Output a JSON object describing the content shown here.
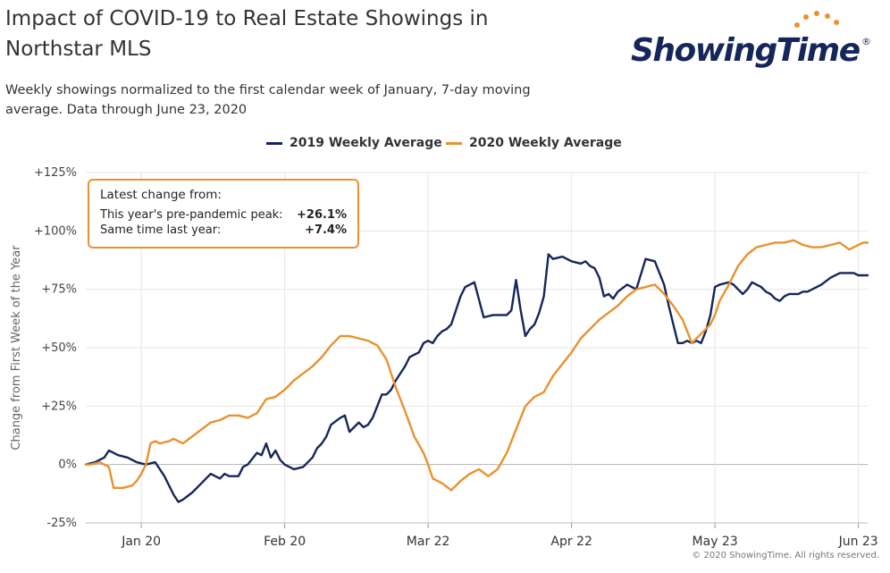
{
  "header": {
    "title": "Impact of COVID-19 to Real Estate Showings in Northstar MLS",
    "subtitle": "Weekly showings normalized to the first calendar week of January, 7-day moving average. Data through June 23, 2020"
  },
  "logo": {
    "text": "ShowingTime",
    "registered": "®"
  },
  "legend": [
    {
      "label": "2019 Weekly Average",
      "color": "#15265a"
    },
    {
      "label": "2020 Weekly Average",
      "color": "#e8922f"
    }
  ],
  "callout": {
    "heading": "Latest change from:",
    "rows": [
      {
        "label": "This year's pre-pandemic peak:",
        "value": "+26.1%"
      },
      {
        "label": "Same time last year:",
        "value": "+7.4%"
      }
    ]
  },
  "credit": "© 2020 ShowingTime. All rights reserved.",
  "chart_data": {
    "type": "line",
    "title": "Impact of COVID-19 to Real Estate Showings in Northstar MLS",
    "xlabel": "",
    "ylabel": "Change from First Week of the Year",
    "x_unit": "day of year (Jan 1 = day 0)",
    "ylim": [
      -25,
      125
    ],
    "xlim": [
      7,
      176
    ],
    "grid": true,
    "legend_position": "top-center",
    "y_ticks": [
      -25,
      0,
      25,
      50,
      75,
      100,
      125
    ],
    "y_tick_labels": [
      "-25%",
      "0%",
      "+25%",
      "+50%",
      "+75%",
      "+100%",
      "+125%"
    ],
    "x_ticks": [
      {
        "value": 19,
        "label": "Jan 20"
      },
      {
        "value": 50,
        "label": "Feb 20"
      },
      {
        "value": 81,
        "label": "Mar 22"
      },
      {
        "value": 112,
        "label": "Apr 22"
      },
      {
        "value": 143,
        "label": "May 23"
      },
      {
        "value": 174,
        "label": "Jun 23"
      }
    ],
    "series": [
      {
        "name": "2019 Weekly Average",
        "color": "#15265a",
        "x": [
          7,
          9,
          10,
          11,
          12,
          13,
          14,
          16,
          18,
          20,
          22,
          24,
          26,
          27,
          28,
          30,
          31,
          33,
          34,
          36,
          37,
          38,
          40,
          41,
          42,
          44,
          45,
          46,
          47,
          48,
          49,
          50,
          51,
          52,
          54,
          56,
          57,
          58,
          59,
          60,
          62,
          63,
          64,
          65,
          66,
          67,
          68,
          69,
          71,
          72,
          73,
          74,
          76,
          77,
          78,
          79,
          80,
          81,
          82,
          83,
          84,
          85,
          86,
          87,
          88,
          89,
          91,
          93,
          95,
          96,
          97,
          98,
          99,
          100,
          101,
          102,
          103,
          104,
          105,
          106,
          107,
          108,
          110,
          112,
          114,
          115,
          116,
          117,
          118,
          119,
          120,
          121,
          122,
          124,
          126,
          128,
          130,
          132,
          133,
          134,
          135,
          136,
          137,
          138,
          139,
          140,
          141,
          142,
          143,
          144,
          146,
          147,
          148,
          149,
          150,
          151,
          152,
          153,
          154,
          155,
          156,
          157,
          158,
          159,
          160,
          161,
          162,
          163,
          164,
          166,
          168,
          170,
          172,
          173,
          174,
          175,
          176
        ],
        "values": [
          0,
          1,
          2,
          3,
          6,
          5,
          4,
          3,
          1,
          0,
          1,
          -5,
          -13,
          -16,
          -15,
          -12,
          -10,
          -6,
          -4,
          -6,
          -4,
          -5,
          -5,
          -1,
          0,
          5,
          4,
          9,
          3,
          6,
          2,
          0,
          -1,
          -2,
          -1,
          3,
          7,
          9,
          12,
          17,
          20,
          21,
          14,
          16,
          18,
          16,
          17,
          20,
          30,
          30,
          32,
          36,
          42,
          46,
          47,
          48,
          52,
          53,
          52,
          55,
          57,
          58,
          60,
          66,
          72,
          76,
          78,
          63,
          64,
          64,
          64,
          64,
          66,
          79,
          66,
          55,
          58,
          60,
          65,
          72,
          90,
          88,
          89,
          87,
          86,
          87,
          85,
          84,
          80,
          72,
          73,
          71,
          74,
          77,
          75,
          88,
          87,
          77,
          68,
          60,
          52,
          52,
          53,
          52,
          53,
          52,
          57,
          64,
          76,
          77,
          78,
          77,
          75,
          73,
          75,
          78,
          77,
          76,
          74,
          73,
          71,
          70,
          72,
          73,
          73,
          73,
          74,
          74,
          75,
          77,
          80,
          82,
          82,
          82,
          81,
          81,
          81
        ]
      },
      {
        "name": "2020 Weekly Average",
        "color": "#e8922f",
        "x": [
          7,
          8,
          10,
          12,
          13,
          15,
          17,
          18,
          19,
          20,
          21,
          22,
          23,
          25,
          26,
          28,
          30,
          32,
          34,
          36,
          38,
          40,
          42,
          44,
          46,
          48,
          50,
          52,
          54,
          56,
          58,
          60,
          62,
          64,
          66,
          68,
          70,
          72,
          74,
          76,
          78,
          80,
          81,
          82,
          84,
          86,
          88,
          90,
          92,
          94,
          96,
          98,
          100,
          102,
          104,
          106,
          108,
          110,
          112,
          114,
          116,
          118,
          120,
          122,
          124,
          126,
          128,
          130,
          132,
          134,
          136,
          138,
          140,
          142,
          143,
          144,
          146,
          148,
          150,
          152,
          154,
          156,
          158,
          160,
          162,
          164,
          166,
          168,
          170,
          172,
          173,
          174,
          175,
          176
        ],
        "values": [
          0,
          0,
          1,
          -1,
          -10,
          -10,
          -9,
          -7,
          -4,
          0,
          9,
          10,
          9,
          10,
          11,
          9,
          12,
          15,
          18,
          19,
          21,
          21,
          20,
          22,
          28,
          29,
          32,
          36,
          39,
          42,
          46,
          51,
          55,
          55,
          54,
          53,
          51,
          45,
          33,
          23,
          12,
          5,
          0,
          -6,
          -8,
          -11,
          -7,
          -4,
          -2,
          -5,
          -2,
          5,
          15,
          25,
          29,
          31,
          38,
          43,
          48,
          54,
          58,
          62,
          65,
          68,
          72,
          75,
          76,
          77,
          73,
          68,
          62,
          52,
          56,
          60,
          64,
          70,
          77,
          85,
          90,
          93,
          94,
          95,
          95,
          96,
          94,
          93,
          93,
          94,
          95,
          92,
          93,
          94,
          95,
          95
        ]
      }
    ]
  }
}
